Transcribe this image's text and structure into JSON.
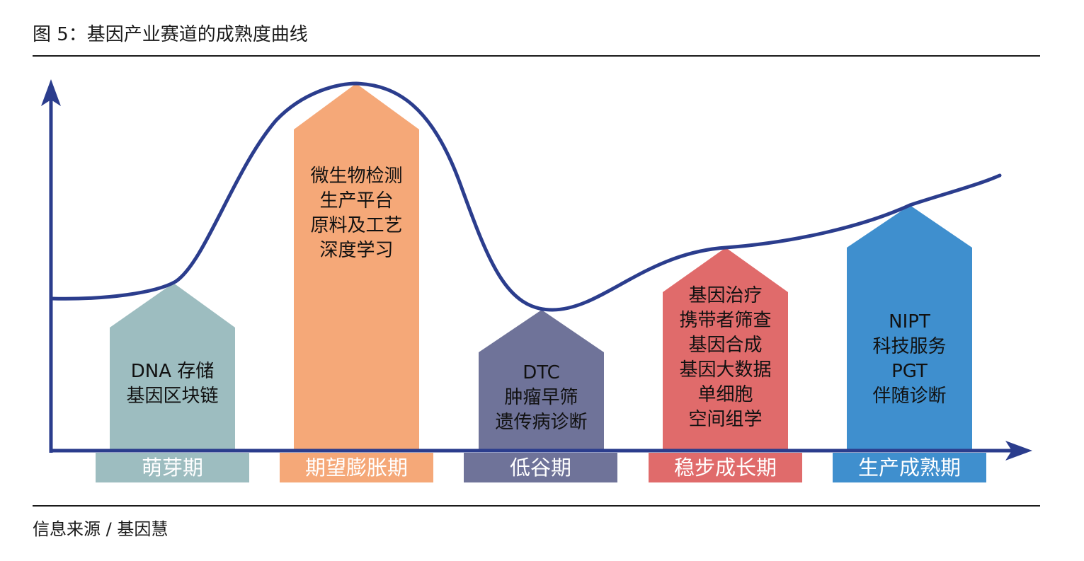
{
  "header": {
    "title": "图 5：基因产业赛道的成熟度曲线"
  },
  "footer": {
    "source": "信息来源 / 基因慧"
  },
  "colors": {
    "curve": "#2b3d8d",
    "phase1": "#9dbdc0",
    "phase2": "#f5a878",
    "phase3": "#6f7399",
    "phase4": "#e06b6b",
    "phase5": "#3f8fce"
  },
  "phases": [
    {
      "name": "萌芽期",
      "items": [
        "DNA 存储",
        "基因区块链"
      ]
    },
    {
      "name": "期望膨胀期",
      "items": [
        "微生物检测",
        "生产平台",
        "原料及工艺",
        "深度学习"
      ]
    },
    {
      "name": "低谷期",
      "items": [
        "DTC",
        "肿瘤早筛",
        "遗传病诊断"
      ]
    },
    {
      "name": "稳步成长期",
      "items": [
        "基因治疗",
        "携带者筛查",
        "基因合成",
        "基因大数据",
        "单细胞",
        "空间组学"
      ]
    },
    {
      "name": "生产成熟期",
      "items": [
        "NIPT",
        "科技服务",
        "PGT",
        "伴随诊断"
      ]
    }
  ]
}
